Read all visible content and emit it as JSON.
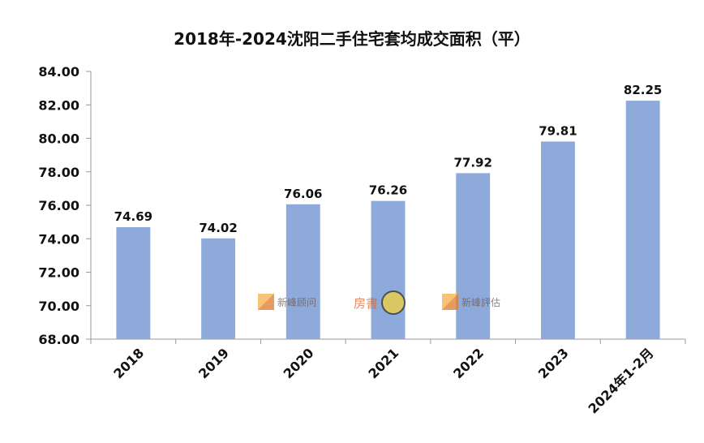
{
  "chart_data": {
    "type": "bar",
    "title": "2018年-2024沈阳二手住宅套均成交面积（平）",
    "categories": [
      "2018",
      "2019",
      "2020",
      "2021",
      "2022",
      "2023",
      "2024年1-2月"
    ],
    "values": [
      74.69,
      74.02,
      76.06,
      76.26,
      77.92,
      79.81,
      82.25
    ],
    "value_labels": [
      "74.69",
      "74.02",
      "76.06",
      "76.26",
      "77.92",
      "79.81",
      "82.25"
    ],
    "ylim": [
      68,
      84
    ],
    "yticks": [
      "68.00",
      "70.00",
      "72.00",
      "74.00",
      "76.00",
      "78.00",
      "80.00",
      "82.00",
      "84.00"
    ],
    "xlabel": "",
    "ylabel": "",
    "grid": false,
    "legend": "none",
    "bar_color": "#8eaadb"
  },
  "watermarks": [
    {
      "name": "新峰顾问",
      "icon_color": "#f0a040"
    },
    {
      "name": "房書",
      "icon_color": "#e06030"
    },
    {
      "name": "新峰評估",
      "icon_color": "#f0a040"
    }
  ]
}
